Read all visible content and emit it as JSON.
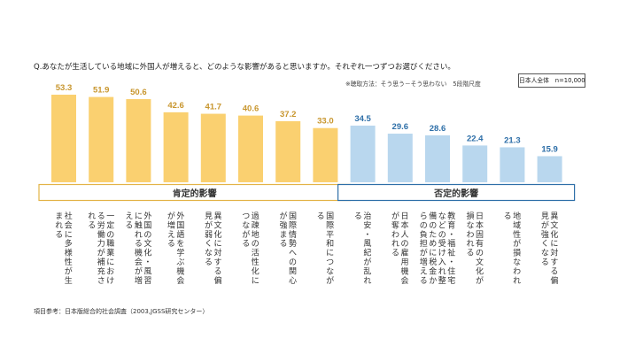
{
  "question": "Q.あなたが生活している地域に外国人が増えると、どのような影響があると思いますか。それぞれ一つずつお選びください。",
  "method_note": "※聴取方法：そう思う－そう思わない　5段階尺度",
  "sample_label": "日本人全体　n=10,000",
  "source_note": "項目参考：日本版総合的社会調査（2003,JGSS研究センター）",
  "colors": {
    "positive": "#FAD070",
    "negative": "#B9D7EE",
    "positive_label": "#C8962E",
    "negative_label": "#2E6FA8",
    "positive_border": "#E3B347",
    "negative_border": "#2E6FA8"
  },
  "chart_data": {
    "type": "bar",
    "groups": [
      {
        "name": "肯定的影響",
        "range": [
          0,
          7
        ]
      },
      {
        "name": "否定的影響",
        "range": [
          8,
          13
        ]
      }
    ],
    "categories": [
      "社会に多様性が生まれる",
      "一定の職業における労働力が補充される",
      "外国の文化・風習に触れる機会が増える",
      "外国語を学ぶ機会が増える",
      "異文化に対する偏見が弱くなる",
      "過疎地の活性化につながる",
      "国際情勢への関心が強まる",
      "国際平和につながる",
      "治安・風紀が乱れる",
      "日本人の雇用機会が奪われる",
      "教育・福祉・住宅などの受け入れ整備のために税金からの負担が増える",
      "日本固有の文化が損なわれる",
      "地域性が損なわれる",
      "異文化に対する偏見が強くなる"
    ],
    "values": [
      53.3,
      51.9,
      50.6,
      42.6,
      41.7,
      40.6,
      37.2,
      33.0,
      34.5,
      29.6,
      28.6,
      22.4,
      21.3,
      15.9
    ],
    "value_labels": [
      "53.3",
      "51.9",
      "50.6",
      "42.6",
      "41.7",
      "40.6",
      "37.2",
      "33.0",
      "34.5",
      "29.6",
      "28.6",
      "22.4",
      "21.3",
      "15.9"
    ],
    "ylim": [
      0,
      53.3
    ],
    "title": "",
    "xlabel": "",
    "ylabel": ""
  }
}
